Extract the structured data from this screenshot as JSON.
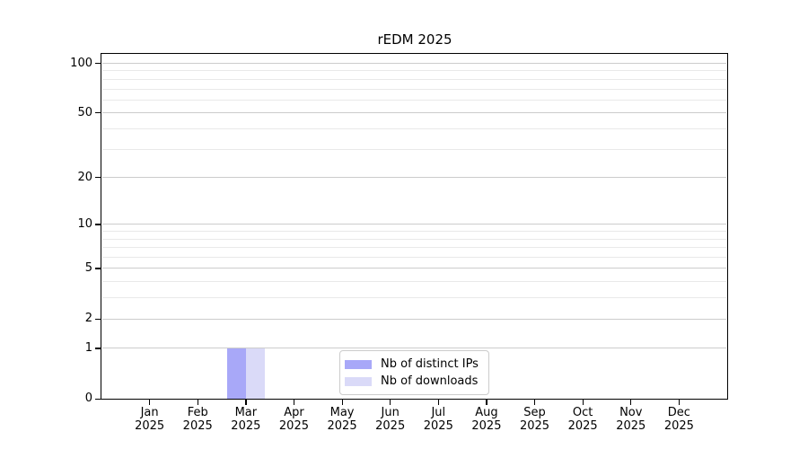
{
  "chart_data": {
    "type": "bar",
    "title": "rEDM 2025",
    "categories": [
      "Jan",
      "Feb",
      "Mar",
      "Apr",
      "May",
      "Jun",
      "Jul",
      "Aug",
      "Sep",
      "Oct",
      "Nov",
      "Dec"
    ],
    "category_year": "2025",
    "series": [
      {
        "name": "Nb of distinct IPs",
        "color": "#a8a8f8",
        "values": [
          0,
          0,
          1,
          0,
          0,
          0,
          0,
          0,
          0,
          0,
          0,
          0
        ]
      },
      {
        "name": "Nb of downloads",
        "color": "#dadaf8",
        "values": [
          0,
          0,
          1,
          0,
          0,
          0,
          0,
          0,
          0,
          0,
          0,
          0
        ]
      }
    ],
    "yscale": "log1p",
    "ylim": [
      0,
      114
    ],
    "yticks": [
      0,
      1,
      2,
      5,
      10,
      20,
      50,
      100
    ],
    "yticks_minor": [
      3,
      4,
      6,
      7,
      8,
      9,
      30,
      40,
      60,
      70,
      80,
      90
    ],
    "xlabel": "",
    "ylabel": "",
    "grid": "horizontal",
    "legend": {
      "position": "lower center"
    }
  },
  "colors": {
    "axis": "#000000",
    "grid_major": "#cccccc",
    "grid_minor": "#e9e9e9",
    "legend_border": "#cccccc",
    "text": "#000000"
  }
}
